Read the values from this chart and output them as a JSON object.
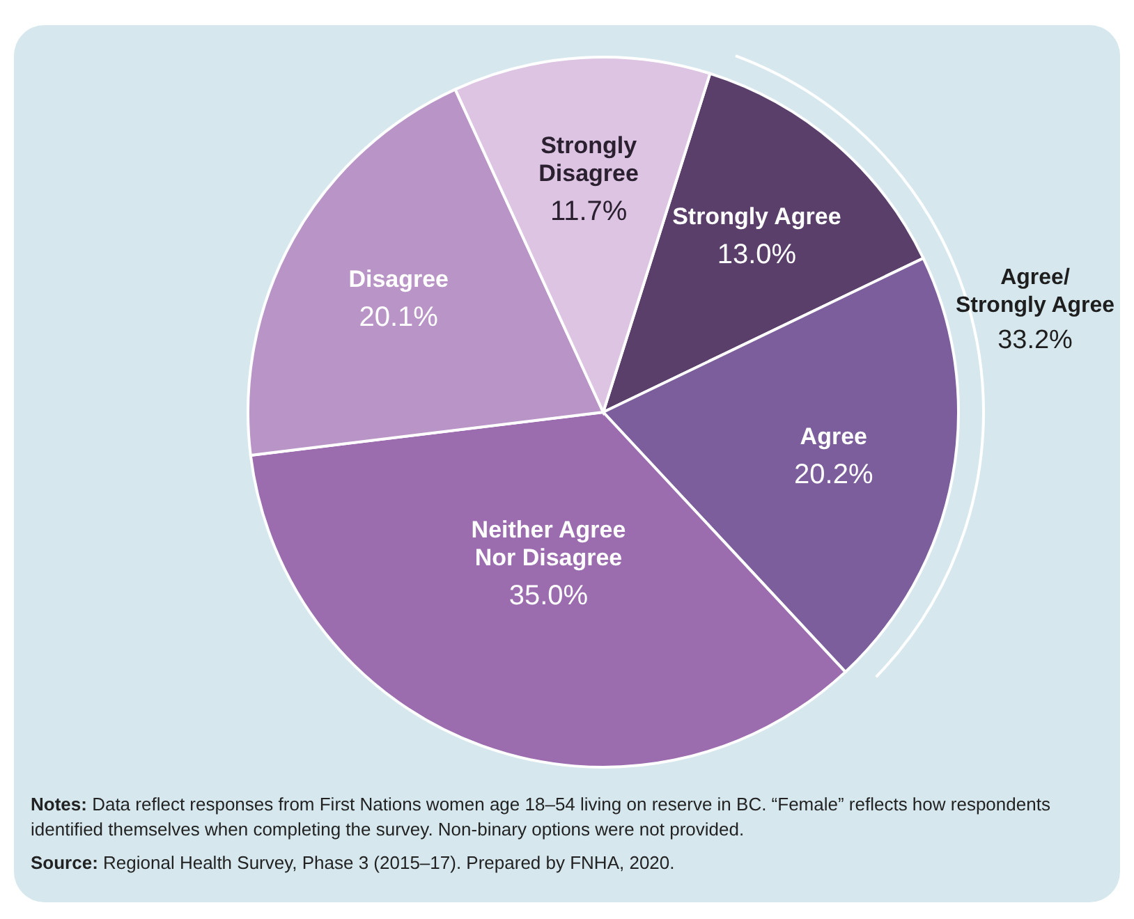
{
  "chart_data": {
    "type": "pie",
    "categories": [
      "Strongly Agree",
      "Agree",
      "Neither Agree Nor Disagree",
      "Disagree",
      "Strongly Disagree"
    ],
    "values": [
      13.0,
      20.2,
      35.0,
      20.1,
      11.7
    ],
    "value_labels": [
      "13.0%",
      "20.2%",
      "35.0%",
      "20.1%",
      "11.7%"
    ],
    "colors": [
      "#5a3f6b",
      "#7b5e9b",
      "#9b6daf",
      "#b994c6",
      "#dcc4e2"
    ],
    "annotations": [
      "Agree/ Strongly Agree 33.2%",
      "Notes: Data reflect responses from First Nations women age 18–54 living on reserve in BC. “Female” reflects how respondents identified themselves when completing the survey. Non-binary options were not provided.",
      "Source: Regional Health Survey, Phase 3 (2015–17). Prepared by FNHA, 2020."
    ]
  }
}
